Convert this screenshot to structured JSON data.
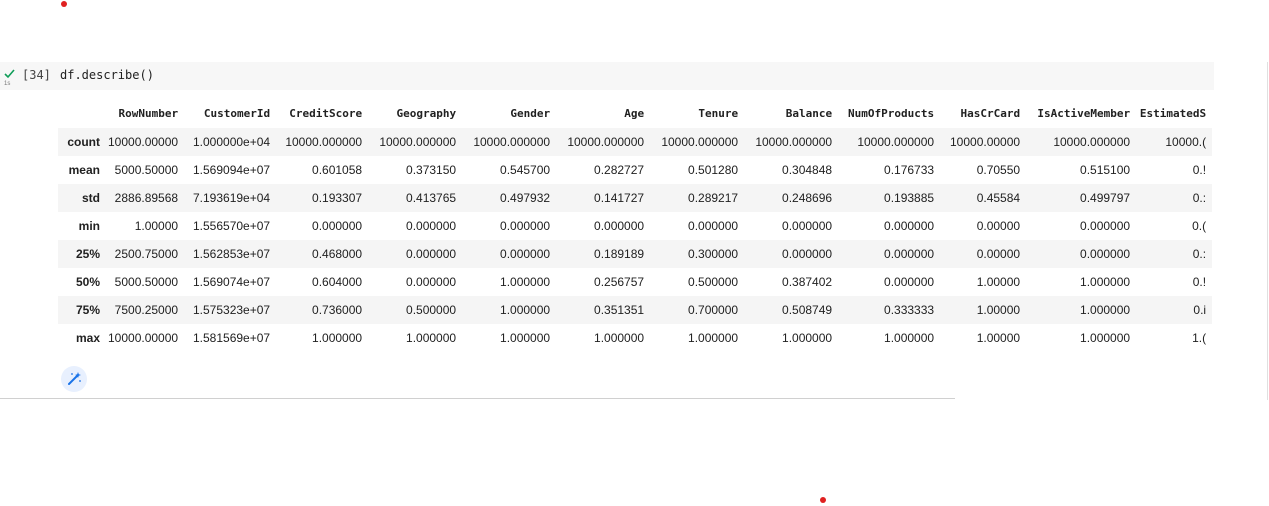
{
  "cell": {
    "exec_count": "[34]",
    "code": "df.describe()",
    "status_icon": "check-icon",
    "status_color": "#0f9d58"
  },
  "table": {
    "columns": [
      "RowNumber",
      "CustomerId",
      "CreditScore",
      "Geography",
      "Gender",
      "Age",
      "Tenure",
      "Balance",
      "NumOfProducts",
      "HasCrCard",
      "IsActiveMember",
      "EstimatedS"
    ],
    "rows": [
      {
        "label": "count",
        "values": [
          "10000.00000",
          "1.000000e+04",
          "10000.000000",
          "10000.000000",
          "10000.000000",
          "10000.000000",
          "10000.000000",
          "10000.000000",
          "10000.000000",
          "10000.00000",
          "10000.000000",
          "10000.("
        ]
      },
      {
        "label": "mean",
        "values": [
          "5000.50000",
          "1.569094e+07",
          "0.601058",
          "0.373150",
          "0.545700",
          "0.282727",
          "0.501280",
          "0.304848",
          "0.176733",
          "0.70550",
          "0.515100",
          "0.!"
        ]
      },
      {
        "label": "std",
        "values": [
          "2886.89568",
          "7.193619e+04",
          "0.193307",
          "0.413765",
          "0.497932",
          "0.141727",
          "0.289217",
          "0.248696",
          "0.193885",
          "0.45584",
          "0.499797",
          "0.:"
        ]
      },
      {
        "label": "min",
        "values": [
          "1.00000",
          "1.556570e+07",
          "0.000000",
          "0.000000",
          "0.000000",
          "0.000000",
          "0.000000",
          "0.000000",
          "0.000000",
          "0.00000",
          "0.000000",
          "0.("
        ]
      },
      {
        "label": "25%",
        "values": [
          "2500.75000",
          "1.562853e+07",
          "0.468000",
          "0.000000",
          "0.000000",
          "0.189189",
          "0.300000",
          "0.000000",
          "0.000000",
          "0.00000",
          "0.000000",
          "0.:"
        ]
      },
      {
        "label": "50%",
        "values": [
          "5000.50000",
          "1.569074e+07",
          "0.604000",
          "0.000000",
          "1.000000",
          "0.256757",
          "0.500000",
          "0.387402",
          "0.000000",
          "1.00000",
          "1.000000",
          "0.!"
        ]
      },
      {
        "label": "75%",
        "values": [
          "7500.25000",
          "1.575323e+07",
          "0.736000",
          "0.500000",
          "1.000000",
          "0.351351",
          "0.700000",
          "0.508749",
          "0.333333",
          "1.00000",
          "1.000000",
          "0.i"
        ]
      },
      {
        "label": "max",
        "values": [
          "10000.00000",
          "1.581569e+07",
          "1.000000",
          "1.000000",
          "1.000000",
          "1.000000",
          "1.000000",
          "1.000000",
          "1.000000",
          "1.00000",
          "1.000000",
          "1.("
        ]
      }
    ]
  },
  "toolbar": {
    "magic_icon": "magic-wand-icon",
    "accent": "#1a73e8"
  }
}
